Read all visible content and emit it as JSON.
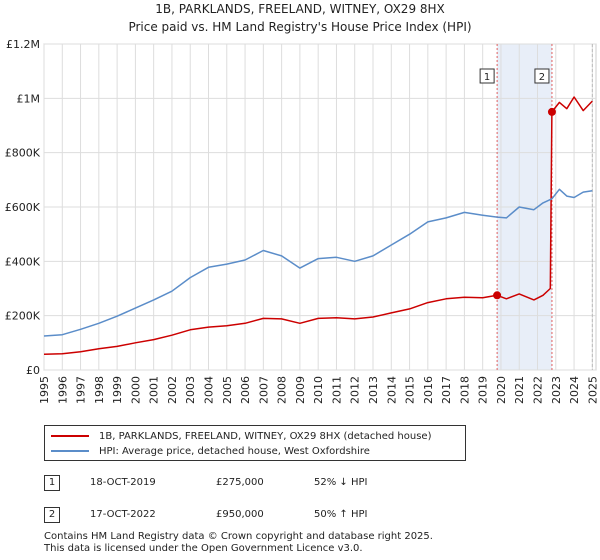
{
  "chart_data": {
    "type": "line",
    "title_line1": "1B, PARKLANDS, FREELAND, WITNEY, OX29 8HX",
    "title_line2": "Price paid vs. HM Land Registry's House Price Index (HPI)",
    "x_ticks": [
      "1995",
      "1996",
      "1997",
      "1998",
      "1999",
      "2000",
      "2001",
      "2002",
      "2003",
      "2004",
      "2005",
      "2006",
      "2007",
      "2008",
      "2009",
      "2010",
      "2011",
      "2012",
      "2013",
      "2014",
      "2015",
      "2016",
      "2017",
      "2018",
      "2019",
      "2020",
      "2021",
      "2022",
      "2023",
      "2024",
      "2025"
    ],
    "y_ticks": [
      "£0",
      "£200K",
      "£400K",
      "£600K",
      "£800K",
      "£1M",
      "£1.2M"
    ],
    "y_tick_values": [
      0,
      200000,
      400000,
      600000,
      800000,
      1000000,
      1200000
    ],
    "xlim": [
      1995,
      2025.2
    ],
    "ylim": [
      0,
      1200000
    ],
    "shaded_period": [
      2019.79,
      2022.79
    ],
    "colors": {
      "price": "#cc0000",
      "hpi": "#5b8dc9",
      "shade": "#e8eef8",
      "vline": "#e06060",
      "grid": "#dddddd"
    },
    "series": [
      {
        "name": "1B, PARKLANDS, FREELAND, WITNEY, OX29 8HX (detached house)",
        "x": [
          1995,
          1996,
          1997,
          1998,
          1999,
          2000,
          2001,
          2002,
          2003,
          2004,
          2005,
          2006,
          2007,
          2008,
          2009,
          2010,
          2011,
          2012,
          2013,
          2014,
          2015,
          2016,
          2017,
          2018,
          2019,
          2019.79,
          2020.3,
          2021,
          2021.8,
          2022.3,
          2022.7,
          2022.79,
          2023.2,
          2023.6,
          2024,
          2024.5,
          2025
        ],
        "values": [
          58000,
          60000,
          67000,
          78000,
          87000,
          100000,
          112000,
          128000,
          148000,
          158000,
          163000,
          172000,
          190000,
          188000,
          172000,
          190000,
          192000,
          188000,
          195000,
          210000,
          225000,
          248000,
          262000,
          268000,
          266000,
          275000,
          262000,
          280000,
          258000,
          275000,
          300000,
          950000,
          985000,
          962000,
          1005000,
          955000,
          990000
        ]
      },
      {
        "name": "HPI: Average price, detached house, West Oxfordshire",
        "x": [
          1995,
          1996,
          1997,
          1998,
          1999,
          2000,
          2001,
          2002,
          2003,
          2004,
          2005,
          2006,
          2007,
          2008,
          2009,
          2010,
          2011,
          2012,
          2013,
          2014,
          2015,
          2016,
          2017,
          2018,
          2019,
          2019.79,
          2020.3,
          2021,
          2021.8,
          2022.3,
          2022.79,
          2023.2,
          2023.6,
          2024,
          2024.5,
          2025
        ],
        "values": [
          125000,
          130000,
          150000,
          172000,
          198000,
          228000,
          258000,
          290000,
          340000,
          378000,
          390000,
          405000,
          440000,
          420000,
          375000,
          410000,
          415000,
          400000,
          420000,
          460000,
          500000,
          545000,
          560000,
          580000,
          570000,
          563000,
          560000,
          600000,
          590000,
          615000,
          630000,
          665000,
          640000,
          635000,
          655000,
          660000
        ]
      }
    ],
    "sales": [
      {
        "label": "1",
        "x": 2019.79,
        "value": 275000
      },
      {
        "label": "2",
        "x": 2022.79,
        "value": 950000
      }
    ]
  },
  "legend": {
    "price_label": "1B, PARKLANDS, FREELAND, WITNEY, OX29 8HX (detached house)",
    "hpi_label": "HPI: Average price, detached house, West Oxfordshire"
  },
  "sales_table": [
    {
      "marker": "1",
      "date": "18-OCT-2019",
      "price": "£275,000",
      "hpi": "52% ↓ HPI"
    },
    {
      "marker": "2",
      "date": "17-OCT-2022",
      "price": "£950,000",
      "hpi": "50% ↑ HPI"
    }
  ],
  "footer": {
    "line1": "Contains HM Land Registry data © Crown copyright and database right 2025.",
    "line2": "This data is licensed under the Open Government Licence v3.0."
  }
}
